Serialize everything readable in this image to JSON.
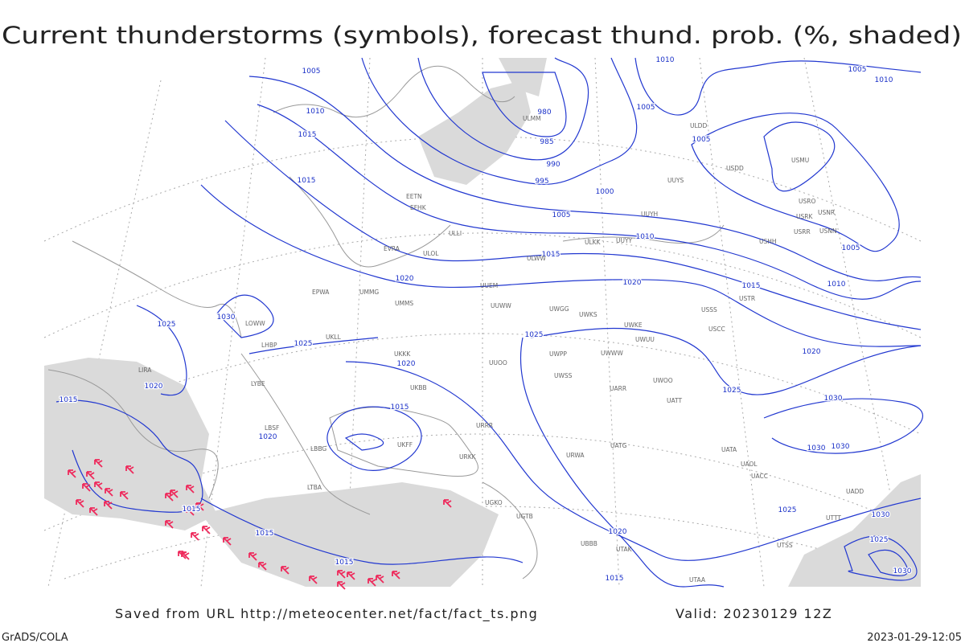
{
  "title": "Current thunderstorms (symbols), forecast thund. prob. (%, shaded)",
  "isobar_labels": [
    "1005",
    "1010",
    "1015",
    "1015",
    "980",
    "985",
    "990",
    "995",
    "1000",
    "1005",
    "1010",
    "1015",
    "1020",
    "1020",
    "1005",
    "1005",
    "1010",
    "1005",
    "1010",
    "1005",
    "1010",
    "1015",
    "1020",
    "1025",
    "1025",
    "1030",
    "1025",
    "1025",
    "1020",
    "1020",
    "1015",
    "1020",
    "1015",
    "1030",
    "1030",
    "1030",
    "1025",
    "1020",
    "1015",
    "1015",
    "1015",
    "1015",
    "1030",
    "1025",
    "1030"
  ],
  "stations": [
    "ULMM",
    "UUYS",
    "ULDD",
    "USDD",
    "USMU",
    "USRO",
    "USRK",
    "USNR",
    "USRR",
    "USNN",
    "USHH",
    "UUYH",
    "UUYY",
    "ULKK",
    "ULLI",
    "ULOL",
    "ULWW",
    "EFHK",
    "EETN",
    "EVRA",
    "EPWA",
    "UMMG",
    "UMMS",
    "UUEM",
    "UUWW",
    "UWGG",
    "UWKS",
    "UWKE",
    "UWUU",
    "UWWW",
    "UWPP",
    "UWSS",
    "UARR",
    "UWOO",
    "UATT",
    "USCC",
    "USTR",
    "USSS",
    "UUOO",
    "UKKK",
    "UKBB",
    "UKLL",
    "LOWW",
    "LHBP",
    "LYBE",
    "LBSF",
    "LBBG",
    "LTBA",
    "UKFF",
    "URKK",
    "URRR",
    "URWA",
    "UATG",
    "UATA",
    "UAOL",
    "UACC",
    "UADD",
    "UTTT",
    "UTSS",
    "UTAK",
    "UTAA",
    "UBBB",
    "UGTB",
    "UGKO",
    "LIRA"
  ],
  "footer": {
    "source": "Saved from URL http://meteocenter.net/fact/fact_ts.png",
    "valid": "Valid: 20230129 12Z",
    "credit": "GrADS/COLA",
    "timestamp": "2023-01-29-12:05"
  }
}
